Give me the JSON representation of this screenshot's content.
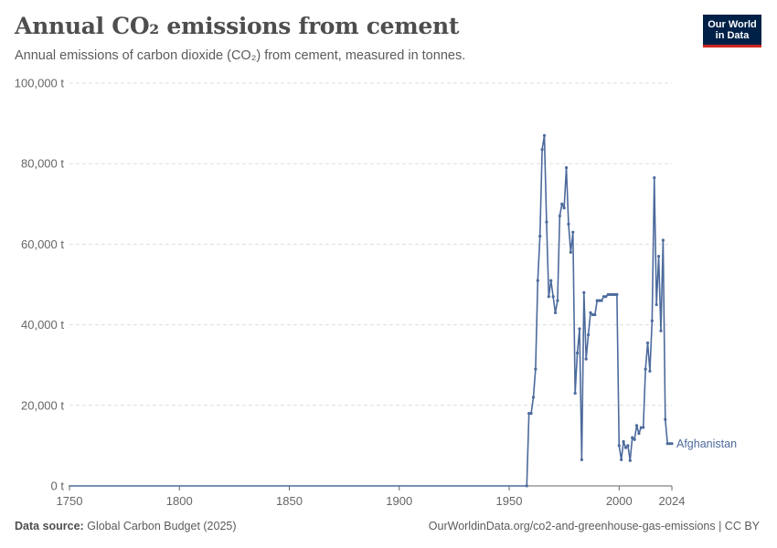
{
  "header": {
    "title": "Annual CO₂ emissions from cement",
    "subtitle": "Annual emissions of carbon dioxide (CO₂) from cement, measured in tonnes.",
    "logo_line1": "Our World",
    "logo_line2": "in Data"
  },
  "footer": {
    "source_label": "Data source:",
    "source_value": "Global Carbon Budget (2025)",
    "url": "OurWorldinData.org/co2-and-greenhouse-gas-emissions | CC BY"
  },
  "colors": {
    "series": "#4c6a9c",
    "grid": "#dddddd",
    "axis": "#666666"
  },
  "chart_data": {
    "type": "line",
    "title": "Annual CO₂ emissions from cement",
    "xlabel": "",
    "ylabel": "",
    "xlim": [
      1750,
      2024
    ],
    "ylim": [
      0,
      100000
    ],
    "x_ticks": [
      1750,
      1800,
      1850,
      1900,
      1950,
      2000,
      2024
    ],
    "y_ticks": [
      {
        "value": 0,
        "label": "0 t"
      },
      {
        "value": 20000,
        "label": "20,000 t"
      },
      {
        "value": 40000,
        "label": "40,000 t"
      },
      {
        "value": 60000,
        "label": "60,000 t"
      },
      {
        "value": 80000,
        "label": "80,000 t"
      },
      {
        "value": 100000,
        "label": "100,000 t"
      }
    ],
    "grid": true,
    "series": [
      {
        "name": "Afghanistan",
        "x": [
          1750,
          1958,
          1959,
          1960,
          1961,
          1962,
          1963,
          1964,
          1965,
          1966,
          1967,
          1968,
          1969,
          1970,
          1971,
          1972,
          1973,
          1974,
          1975,
          1976,
          1977,
          1978,
          1979,
          1980,
          1981,
          1982,
          1983,
          1984,
          1985,
          1986,
          1987,
          1988,
          1989,
          1990,
          1991,
          1992,
          1993,
          1994,
          1995,
          1996,
          1997,
          1998,
          1999,
          2000,
          2001,
          2002,
          2003,
          2004,
          2005,
          2006,
          2007,
          2008,
          2009,
          2010,
          2011,
          2012,
          2013,
          2014,
          2015,
          2016,
          2017,
          2018,
          2019,
          2020,
          2021,
          2022,
          2023,
          2024
        ],
        "values": [
          0,
          0,
          18000,
          18000,
          22000,
          29000,
          51000,
          62000,
          83500,
          87000,
          65500,
          47000,
          51000,
          47000,
          43000,
          46000,
          67000,
          70000,
          69000,
          79000,
          65000,
          58000,
          63000,
          23000,
          33000,
          39000,
          6500,
          48000,
          31500,
          37500,
          43000,
          42500,
          42500,
          46000,
          46000,
          46000,
          47000,
          47000,
          47500,
          47500,
          47500,
          47500,
          47500,
          10000,
          6500,
          11000,
          9500,
          10000,
          6300,
          12000,
          11500,
          15000,
          13000,
          14500,
          14500,
          29000,
          35500,
          28500,
          41000,
          76500,
          45000,
          57000,
          38500,
          61000,
          16500,
          10500,
          10500,
          10500
        ]
      }
    ]
  }
}
